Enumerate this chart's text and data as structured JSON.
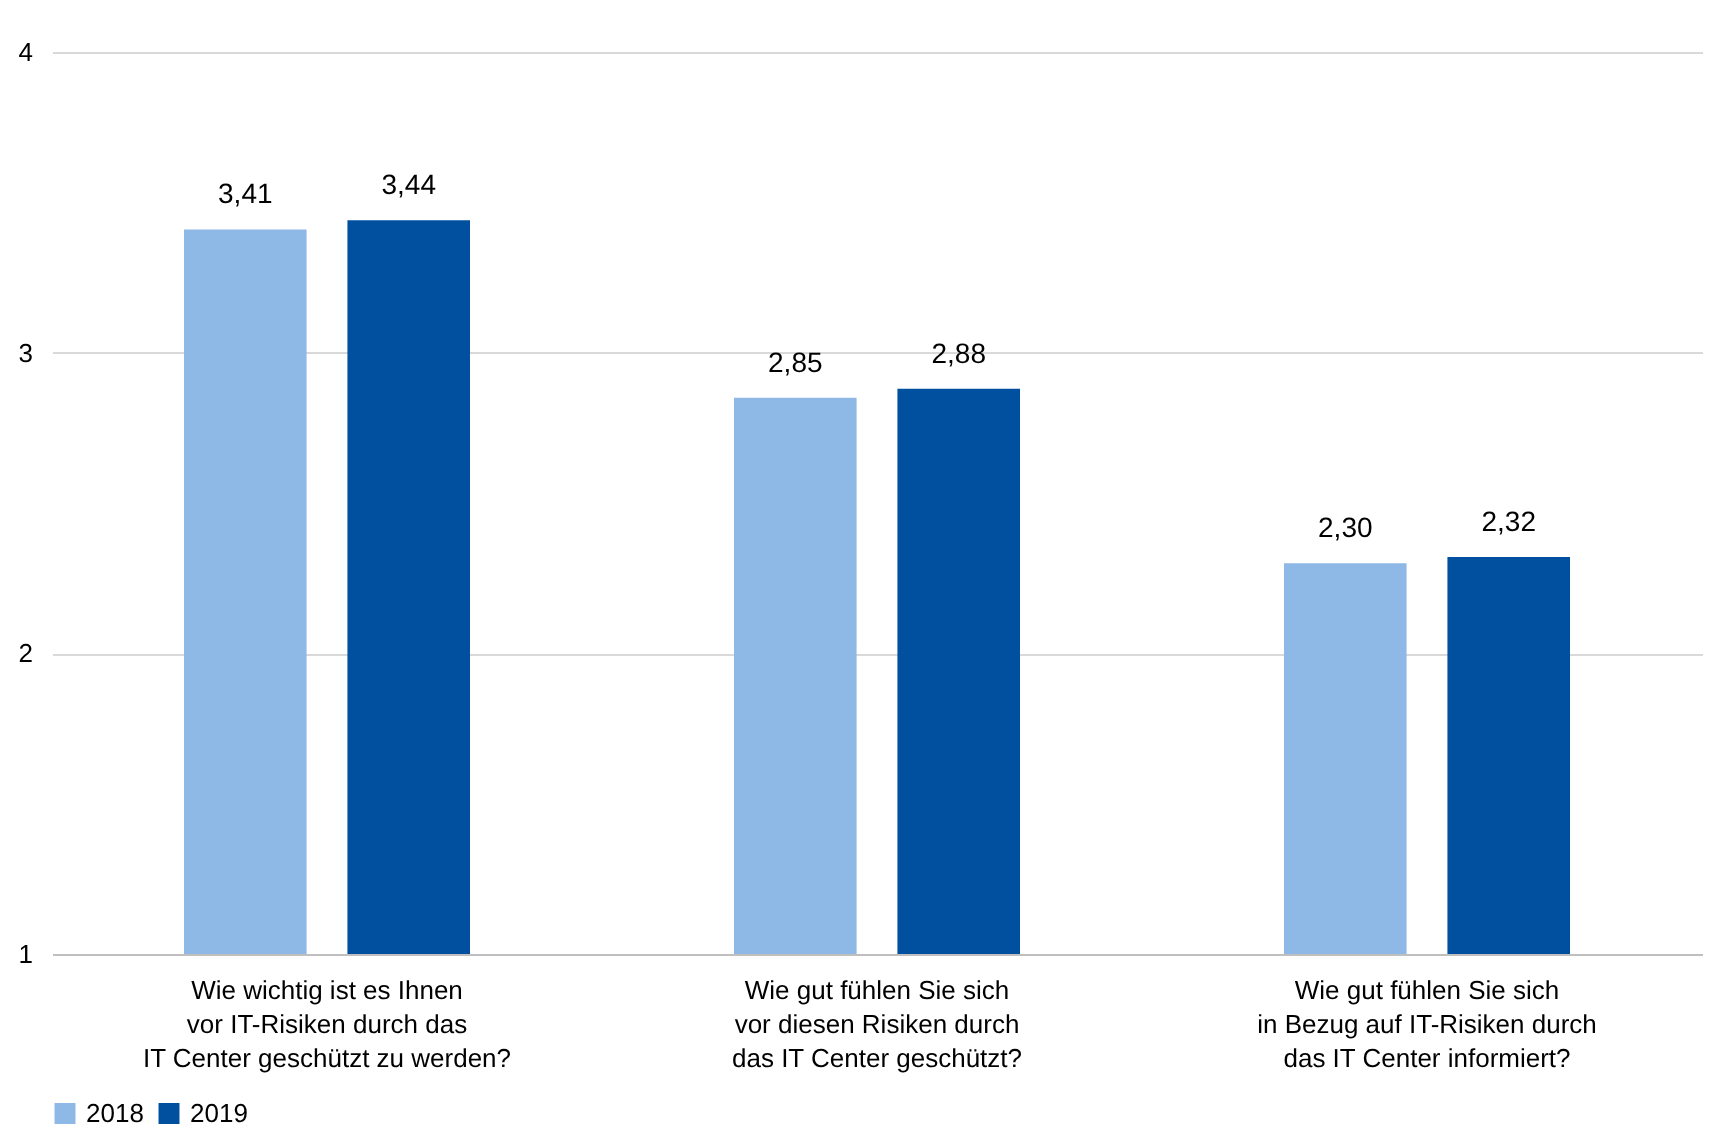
{
  "chart_data": {
    "type": "bar",
    "categories": [
      "Wie wichtig ist es Ihnen\nvor IT-Risiken durch das\nIT Center geschützt zu werden?",
      "Wie gut fühlen Sie sich\nvor diesen Risiken durch\ndas IT Center geschützt?",
      "Wie gut fühlen Sie sich\nin Bezug auf IT-Risiken durch\ndas IT Center informiert?"
    ],
    "series": [
      {
        "name": "2018",
        "color": "#8eb8e5",
        "values": [
          3.41,
          2.85,
          2.3
        ],
        "value_labels": [
          "3,41",
          "2,85",
          "2,30"
        ]
      },
      {
        "name": "2019",
        "color": "#00509f",
        "values": [
          3.44,
          2.88,
          2.32
        ],
        "value_labels": [
          "3,44",
          "2,88",
          "2,32"
        ]
      }
    ],
    "ylim": [
      1,
      4
    ],
    "yticks": [
      1,
      2,
      3,
      4
    ],
    "grid": "y",
    "legend": "bottom"
  }
}
